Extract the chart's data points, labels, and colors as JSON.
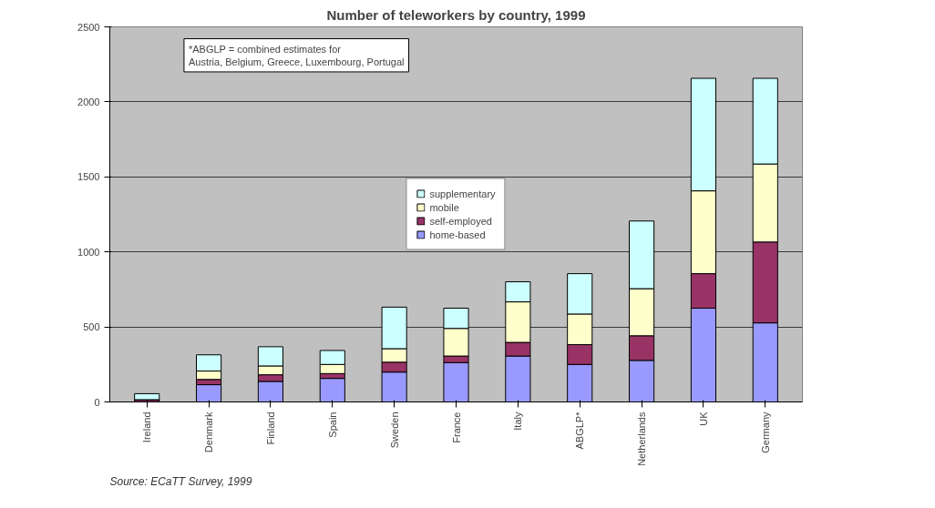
{
  "chart_data": {
    "type": "bar",
    "stacked": true,
    "title": "Number of teleworkers by country, 1999",
    "categories": [
      "Ireland",
      "Denmark",
      "Finland",
      "Spain",
      "Sweden",
      "France",
      "Italy",
      "ABGLP*",
      "Netherlands",
      "UK",
      "Germany"
    ],
    "series": [
      {
        "name": "home-based",
        "color": "#9999ff",
        "values": [
          null,
          115,
          137,
          157,
          199,
          262,
          306,
          250,
          277,
          625,
          527
        ]
      },
      {
        "name": "self-employed",
        "color": "#993366",
        "values": [
          15,
          35,
          44,
          32,
          66,
          44,
          91,
          132,
          164,
          230,
          539
        ]
      },
      {
        "name": "mobile",
        "color": "#ffffcc",
        "values": [
          null,
          56,
          59,
          61,
          90,
          184,
          270,
          204,
          314,
          552,
          520
        ]
      },
      {
        "name": "supplementary",
        "color": "#ccffff",
        "values": [
          40,
          108,
          128,
          93,
          277,
          135,
          134,
          269,
          451,
          750,
          571
        ]
      }
    ],
    "ylim": [
      0,
      2500
    ],
    "yticks": [
      0,
      500,
      1000,
      1500,
      2000,
      2500
    ],
    "grid": "y",
    "legend": "center",
    "annotations": [
      "*ABGLP = combined estimates for\nAustria, Belgium, Greece, Luxembourg, Portugal",
      "Source: ECaTT Survey, 1999"
    ]
  }
}
